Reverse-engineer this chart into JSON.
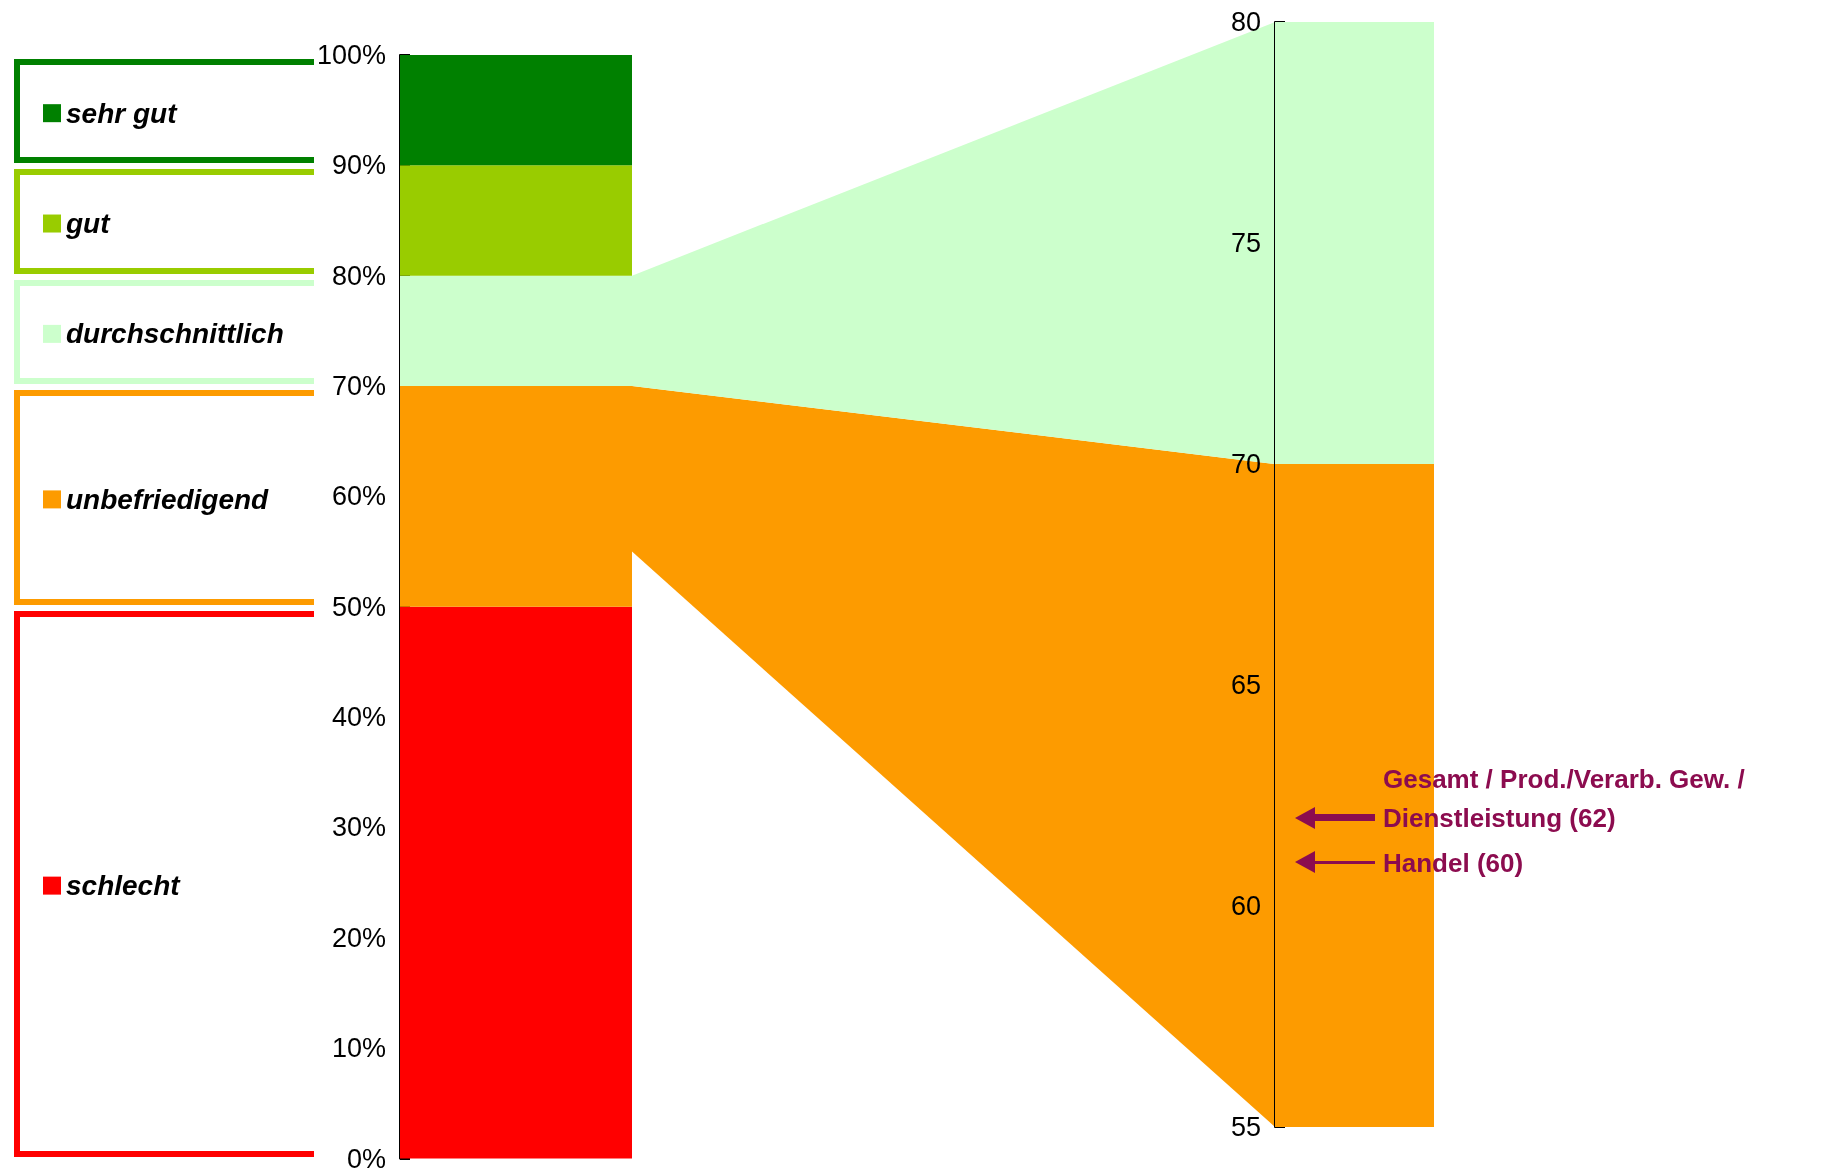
{
  "chart_data": [
    {
      "type": "bar",
      "stacked": true,
      "categories": [
        null
      ],
      "legend": "left",
      "series": [
        {
          "name": "schlecht",
          "color": "#ff0000",
          "values": [
            50
          ]
        },
        {
          "name": "unbefriedigend",
          "color": "#fd9b00",
          "values": [
            20
          ]
        },
        {
          "name": "durchschnittlich",
          "color": "#ccffcc",
          "values": [
            10
          ]
        },
        {
          "name": "gut",
          "color": "#99cc00",
          "values": [
            10
          ]
        },
        {
          "name": "sehr gut",
          "color": "#008000",
          "values": [
            10
          ]
        }
      ],
      "ylim": [
        0,
        100
      ],
      "yticks": [
        {
          "value": 0,
          "label": "0%"
        },
        {
          "value": 10,
          "label": "10%"
        },
        {
          "value": 20,
          "label": "20%"
        },
        {
          "value": 30,
          "label": "30%"
        },
        {
          "value": 40,
          "label": "40%"
        },
        {
          "value": 50,
          "label": "50%"
        },
        {
          "value": 60,
          "label": "60%"
        },
        {
          "value": 70,
          "label": "70%"
        },
        {
          "value": 80,
          "label": "80%"
        },
        {
          "value": 90,
          "label": "90%"
        },
        {
          "value": 100,
          "label": "100%"
        }
      ]
    },
    {
      "type": "bar",
      "categories": [
        null
      ],
      "series": [
        {
          "color": "#fd9b00",
          "values": [
            15
          ],
          "base": [
            55
          ]
        },
        {
          "color": "#ccffcc",
          "values": [
            10
          ],
          "base": [
            70
          ]
        }
      ],
      "ylim": [
        55,
        80
      ],
      "yticks": [
        55,
        60,
        65,
        70,
        75,
        80
      ],
      "ref_lines": [
        {
          "axis": "y",
          "value": 62,
          "label": "Gesamt / Prod./Verarb. Gew. / Dienstleistung (62)",
          "color": "#8c0c4f"
        },
        {
          "axis": "y",
          "value": 61,
          "label": "Handel (60)",
          "color": "#8c0c4f"
        }
      ]
    }
  ]
}
